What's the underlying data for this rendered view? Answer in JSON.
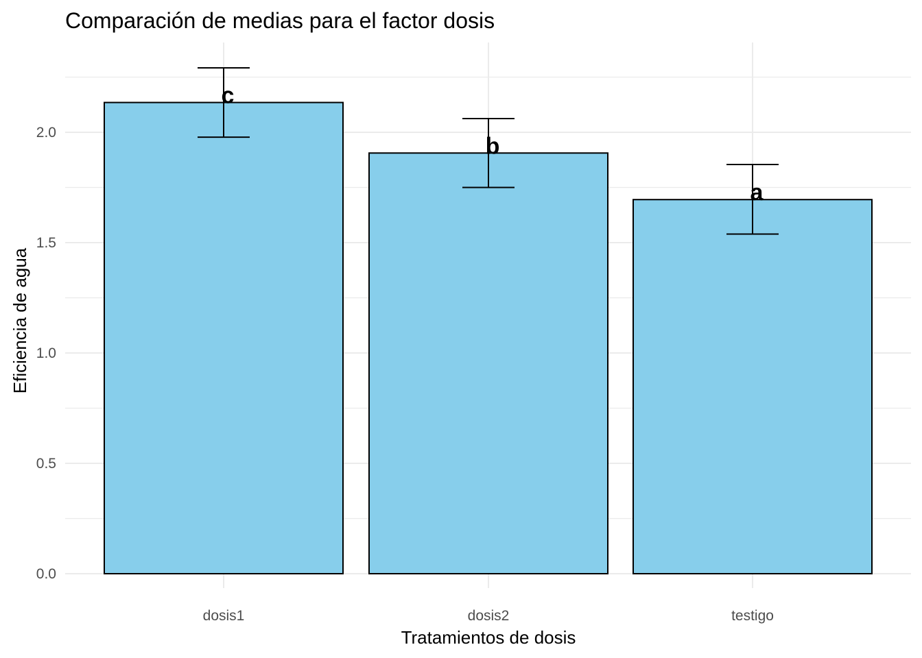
{
  "chart_data": {
    "type": "bar",
    "title": "Comparación de medias para el factor dosis",
    "xlabel": "Tratamientos de dosis",
    "ylabel": "Eficiencia de agua",
    "categories": [
      "dosis1",
      "dosis2",
      "testigo"
    ],
    "values": [
      2.135,
      1.906,
      1.695
    ],
    "error_upper": [
      2.292,
      2.062,
      1.854
    ],
    "error_lower": [
      1.978,
      1.75,
      1.539
    ],
    "group_letters": [
      "c",
      "b",
      "a"
    ],
    "ylim": [
      -0.07,
      2.4
    ],
    "yticks": [
      0.0,
      0.5,
      1.0,
      1.5,
      2.0
    ],
    "ytick_labels": [
      "0.0",
      "0.5",
      "1.0",
      "1.5",
      "2.0"
    ],
    "grid": true,
    "legend": "none",
    "bar_color": "#87CEEB",
    "bar_edge_color": "#000000",
    "grid_color": "#ebebeb"
  }
}
